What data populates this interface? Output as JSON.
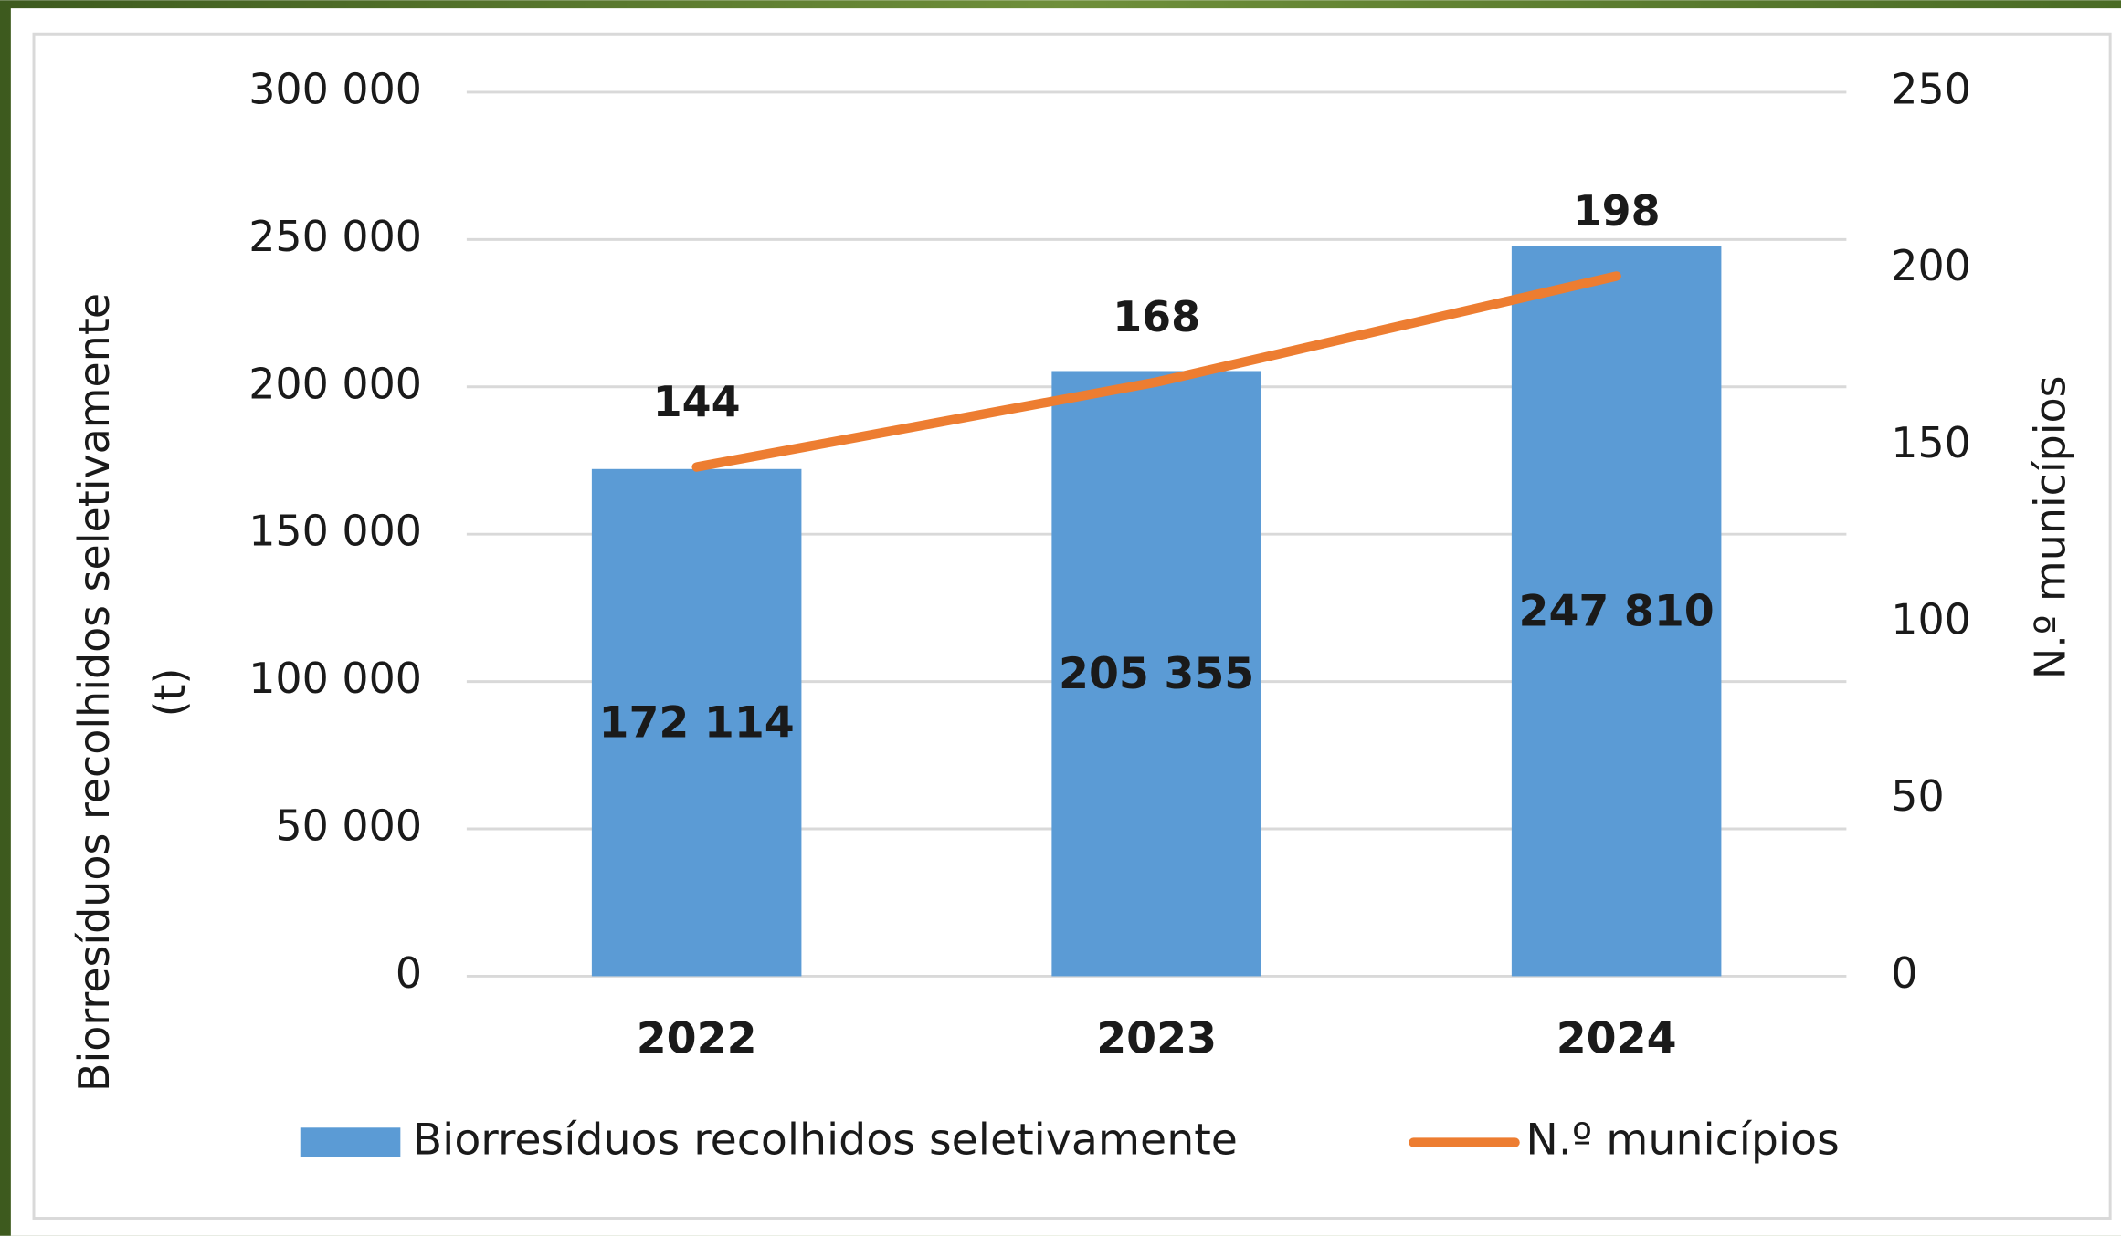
{
  "chart_data": {
    "type": "bar_line",
    "categories": [
      "2022",
      "2023",
      "2024"
    ],
    "y_label": [
      "Biorresíduos recolhidos seletivamente",
      "(t)"
    ],
    "y2_label": "N.º municípios",
    "ylim": [
      0,
      300000
    ],
    "yticks": [
      {
        "value": 0,
        "label": "0"
      },
      {
        "value": 50000,
        "label": "50 000"
      },
      {
        "value": 100000,
        "label": "100 000"
      },
      {
        "value": 150000,
        "label": "150 000"
      },
      {
        "value": 200000,
        "label": "200 000"
      },
      {
        "value": 250000,
        "label": "250 000"
      },
      {
        "value": 300000,
        "label": "300 000"
      }
    ],
    "y2lim": [
      0,
      250
    ],
    "y2ticks": [
      0,
      50,
      100,
      150,
      200,
      250
    ],
    "grid": true,
    "legend": "bottom",
    "series": [
      {
        "name": "Biorresíduos recolhidos seletivamente",
        "type": "bar",
        "color": "#5b9bd5",
        "values": [
          172114,
          205355,
          247810
        ],
        "value_labels": [
          "172 114",
          "205 355",
          "247 810"
        ]
      },
      {
        "name": "N.º municípios",
        "type": "line",
        "axis": "y2",
        "color": "#ed7d31",
        "values": [
          144,
          168,
          198
        ]
      }
    ]
  }
}
